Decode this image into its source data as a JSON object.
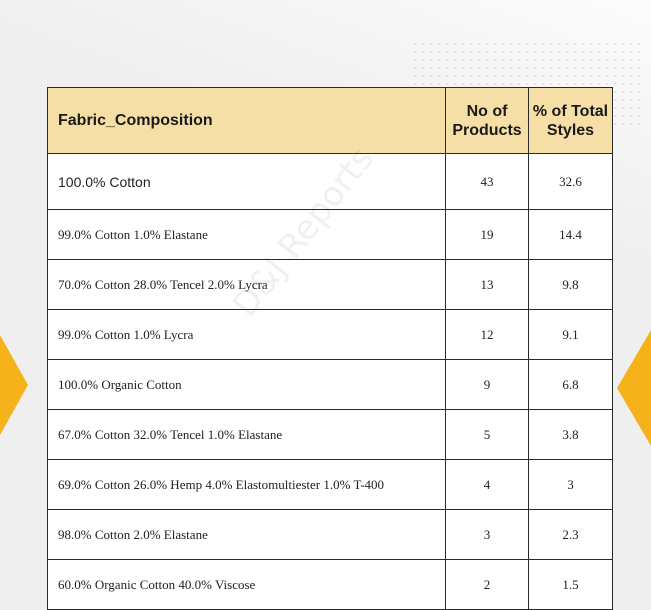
{
  "table": {
    "headers": [
      "Fabric_Composition",
      "No of Products",
      "% of Total Styles"
    ],
    "rows": [
      {
        "composition": "100.0% Cotton",
        "products": "43",
        "percent": "32.6"
      },
      {
        "composition": "99.0% Cotton 1.0% Elastane",
        "products": "19",
        "percent": "14.4"
      },
      {
        "composition": "70.0% Cotton 28.0% Tencel 2.0% Lycra",
        "products": "13",
        "percent": "9.8"
      },
      {
        "composition": "99.0% Cotton 1.0% Lycra",
        "products": "12",
        "percent": "9.1"
      },
      {
        "composition": "100.0% Organic Cotton",
        "products": "9",
        "percent": "6.8"
      },
      {
        "composition": "67.0% Cotton 32.0% Tencel 1.0% Elastane",
        "products": "5",
        "percent": "3.8"
      },
      {
        "composition": "69.0% Cotton 26.0% Hemp 4.0% Elastomultiester 1.0% T-400",
        "products": "4",
        "percent": "3"
      },
      {
        "composition": "98.0% Cotton 2.0% Elastane",
        "products": "3",
        "percent": "2.3"
      },
      {
        "composition": "60.0% Organic Cotton 40.0% Viscose",
        "products": "2",
        "percent": "1.5"
      }
    ]
  },
  "watermark": "D&J Reports",
  "colors": {
    "header_bg": "#f5dfa6",
    "accent": "#f6b21b",
    "border": "#2a2a2a"
  }
}
